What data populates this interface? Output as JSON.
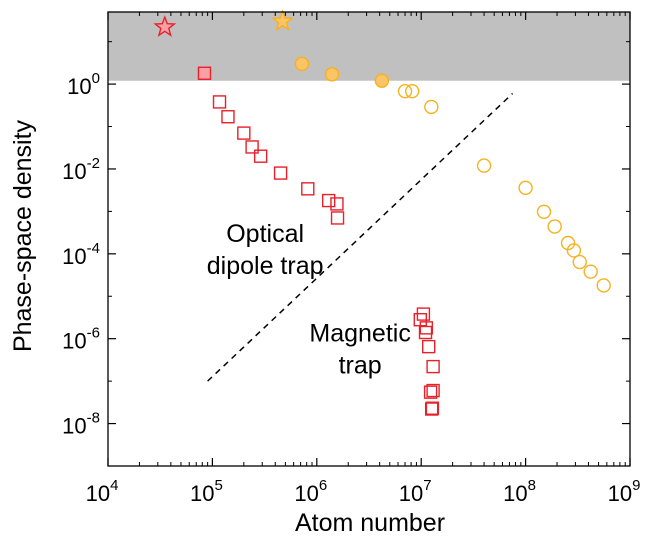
{
  "chart_data": {
    "type": "scatter",
    "title": "",
    "xlabel": "Atom number",
    "ylabel": "Phase-space density",
    "xscale": "log",
    "yscale": "log",
    "xlim": [
      10000,
      1000000000
    ],
    "ylim": [
      1e-09,
      50
    ],
    "grid": false,
    "x_ticks": [
      {
        "value": 10000,
        "base": "10",
        "exp": "4"
      },
      {
        "value": 100000,
        "base": "10",
        "exp": "5"
      },
      {
        "value": 1000000,
        "base": "10",
        "exp": "6"
      },
      {
        "value": 10000000,
        "base": "10",
        "exp": "7"
      },
      {
        "value": 100000000,
        "base": "10",
        "exp": "8"
      },
      {
        "value": 1000000000,
        "base": "10",
        "exp": "9"
      }
    ],
    "y_ticks": [
      {
        "value": 1e-08,
        "base": "10",
        "exp": "-8"
      },
      {
        "value": 1e-06,
        "base": "10",
        "exp": "-6"
      },
      {
        "value": 0.0001,
        "base": "10",
        "exp": "-4"
      },
      {
        "value": 0.01,
        "base": "10",
        "exp": "-2"
      },
      {
        "value": 1,
        "base": "10",
        "exp": "0"
      }
    ],
    "shaded_region": {
      "y_from": 1.2,
      "y_to": 50,
      "color": "#c0c0c0"
    },
    "divider_line": {
      "x": [
        90000,
        75000000
      ],
      "y": [
        1e-07,
        0.6
      ],
      "style": "dashed"
    },
    "annotations": [
      {
        "text_lines": [
          "Optical",
          "dipole trap"
        ],
        "x": 320000,
        "y": 0.0001
      },
      {
        "text_lines": [
          "Magnetic",
          "trap"
        ],
        "x": 2600000,
        "y": 5e-07
      }
    ],
    "colors": {
      "red": "#e8202a",
      "red_fill": "#f7a0a6",
      "orange": "#f5b21e",
      "orange_fill": "#fcc469",
      "shade": "#c0c0c0"
    },
    "series": [
      {
        "marker": "square",
        "color": "#e8202a",
        "filled": false,
        "x": [
          117000,
          141000,
          200000,
          240000,
          290000,
          450000,
          820000,
          1300000,
          1560000,
          1580000
        ],
        "y": [
          0.38,
          0.17,
          0.07,
          0.033,
          0.02,
          0.008,
          0.0034,
          0.0018,
          0.0015,
          0.0007
        ]
      },
      {
        "marker": "square",
        "color": "#e8202a",
        "filled": false,
        "x": [
          10500000,
          9800000,
          11200000,
          11000000,
          11800000,
          13000000,
          12300000,
          13000000,
          12800000,
          12600000
        ],
        "y": [
          3.8e-06,
          2.8e-06,
          1.8e-06,
          1.4e-06,
          6.5e-07,
          2.2e-07,
          5.5e-08,
          6e-08,
          2.3e-08,
          2.2e-08
        ]
      },
      {
        "marker": "square",
        "color": "#e8202a",
        "filled": true,
        "fill_color": "#f7a0a6",
        "x": [
          84000
        ],
        "y": [
          1.8
        ]
      },
      {
        "marker": "star",
        "color": "#e8202a",
        "filled": true,
        "fill_color": "#f7a0a6",
        "x": [
          35000
        ],
        "y": [
          22
        ]
      },
      {
        "marker": "circle",
        "color": "#f5b21e",
        "filled": false,
        "x": [
          7000000,
          8200000,
          12500000,
          40000000,
          100000000,
          150000000,
          190000000,
          255000000,
          290000000,
          330000000,
          420000000,
          560000000
        ],
        "y": [
          0.68,
          0.68,
          0.29,
          0.012,
          0.0036,
          0.00098,
          0.00044,
          0.00018,
          0.00012,
          6.4e-05,
          3.8e-05,
          1.8e-05
        ]
      },
      {
        "marker": "circle",
        "color": "#f5b21e",
        "filled": true,
        "fill_color": "#fcc469",
        "x": [
          720000,
          1400000,
          4200000
        ],
        "y": [
          3.0,
          1.7,
          1.2
        ]
      },
      {
        "marker": "star",
        "color": "#f5b21e",
        "filled": true,
        "fill_color": "#fcc469",
        "x": [
          470000
        ],
        "y": [
          30
        ]
      }
    ]
  }
}
